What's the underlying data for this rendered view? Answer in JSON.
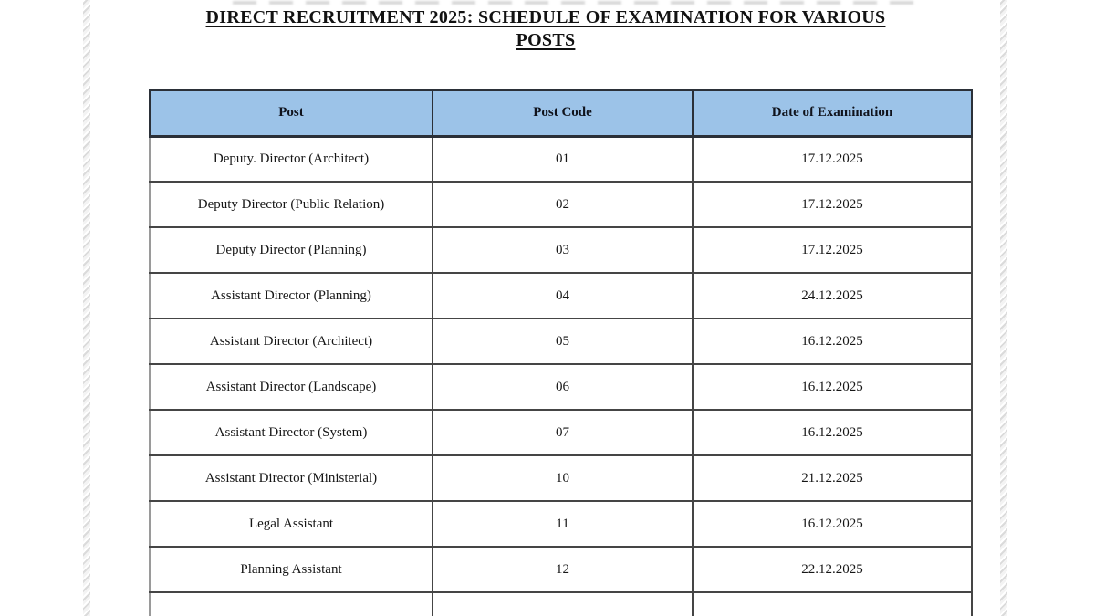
{
  "title": {
    "line1": "DIRECT RECRUITMENT 2025: SCHEDULE OF EXAMINATION FOR VARIOUS",
    "line2": "POSTS"
  },
  "table": {
    "headers": [
      "Post",
      "Post Code",
      "Date of Examination"
    ],
    "rows": [
      [
        "Deputy. Director (Architect)",
        "01",
        "17.12.2025"
      ],
      [
        "Deputy Director (Public Relation)",
        "02",
        "17.12.2025"
      ],
      [
        "Deputy Director (Planning)",
        "03",
        "17.12.2025"
      ],
      [
        "Assistant Director (Planning)",
        "04",
        "24.12.2025"
      ],
      [
        "Assistant Director (Architect)",
        "05",
        "16.12.2025"
      ],
      [
        "Assistant Director (Landscape)",
        "06",
        "16.12.2025"
      ],
      [
        "Assistant Director (System)",
        "07",
        "16.12.2025"
      ],
      [
        "Assistant Director (Ministerial)",
        "10",
        "21.12.2025"
      ],
      [
        "Legal Assistant",
        "11",
        "16.12.2025"
      ],
      [
        "Planning Assistant",
        "12",
        "22.12.2025"
      ]
    ]
  },
  "colors": {
    "header_bg": "#9cc3e8",
    "border_dark": "#2b3038",
    "border_body": "#454545",
    "text": "#161616"
  }
}
